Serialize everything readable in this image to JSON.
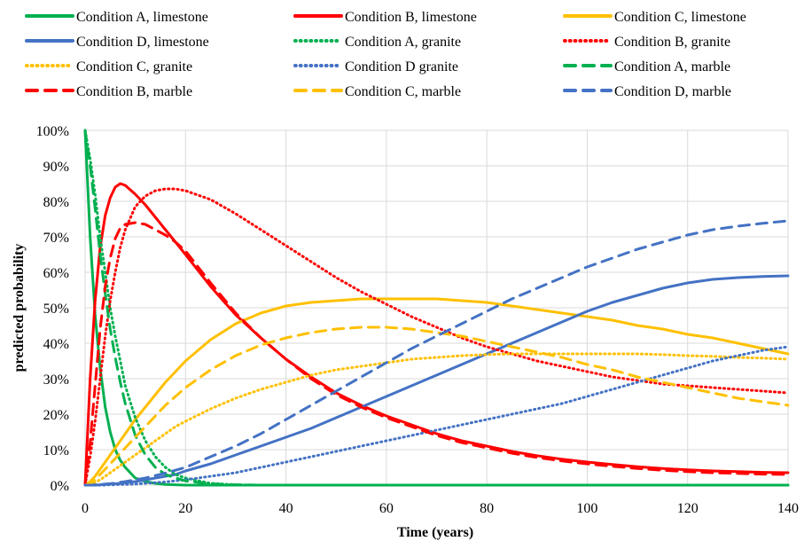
{
  "chart_data": {
    "type": "line",
    "title": "",
    "xlabel": "Time (years)",
    "ylabel": "predicted probability",
    "xlim": [
      0,
      140
    ],
    "ylim": [
      0,
      100
    ],
    "xticks": [
      "0",
      "20",
      "40",
      "60",
      "80",
      "100",
      "120",
      "140"
    ],
    "xtick_values": [
      0,
      20,
      40,
      60,
      80,
      100,
      120,
      140
    ],
    "yticks": [
      "0%",
      "10%",
      "20%",
      "30%",
      "40%",
      "50%",
      "60%",
      "70%",
      "80%",
      "90%",
      "100%"
    ],
    "ytick_values": [
      0,
      10,
      20,
      30,
      40,
      50,
      60,
      70,
      80,
      90,
      100
    ],
    "grid": true,
    "legend_position": "top",
    "x": [
      0,
      1,
      2,
      3,
      4,
      5,
      6,
      7,
      8,
      10,
      12,
      14,
      16,
      18,
      20,
      25,
      30,
      35,
      40,
      45,
      50,
      55,
      60,
      65,
      70,
      75,
      80,
      85,
      90,
      95,
      100,
      105,
      110,
      115,
      120,
      125,
      130,
      135,
      140
    ],
    "series": [
      {
        "name": "Condition A, limestone",
        "color": "#00B050",
        "style": "solid",
        "values": [
          100,
          70,
          48,
          33,
          22,
          15,
          10,
          7,
          5,
          2,
          1,
          0.5,
          0.2,
          0.1,
          0,
          0,
          0,
          0,
          0,
          0,
          0,
          0,
          0,
          0,
          0,
          0,
          0,
          0,
          0,
          0,
          0,
          0,
          0,
          0,
          0,
          0,
          0,
          0,
          0
        ]
      },
      {
        "name": "Condition B, limestone",
        "color": "#FF0000",
        "style": "solid",
        "values": [
          0,
          30,
          52,
          67,
          76,
          81,
          84,
          85,
          84.5,
          82,
          79,
          75.5,
          72,
          68.5,
          65,
          56,
          48,
          41.5,
          35.5,
          30.5,
          26,
          22.5,
          19.5,
          17,
          14.5,
          12.5,
          11,
          9.5,
          8.3,
          7.3,
          6.5,
          5.8,
          5.2,
          4.7,
          4.3,
          4,
          3.8,
          3.6,
          3.5
        ]
      },
      {
        "name": "Condition C, limestone",
        "color": "#FFC000",
        "style": "solid",
        "values": [
          0,
          1,
          2.5,
          4.5,
          6.5,
          8.5,
          10.5,
          12.5,
          14.5,
          18.5,
          22,
          25.5,
          29,
          32,
          35,
          41,
          45.5,
          48.5,
          50.5,
          51.5,
          52,
          52.5,
          52.5,
          52.5,
          52.5,
          52,
          51.5,
          50.5,
          49.5,
          48.5,
          47.5,
          46.5,
          45,
          44,
          42.5,
          41.5,
          40,
          38.5,
          37
        ]
      },
      {
        "name": "Condition D, limestone",
        "color": "#4472C4",
        "style": "solid",
        "values": [
          0,
          0,
          0,
          0.1,
          0.2,
          0.3,
          0.4,
          0.5,
          0.7,
          1,
          1.5,
          2,
          2.5,
          3,
          4,
          6,
          8.5,
          11,
          13.5,
          16,
          19,
          22,
          25,
          28,
          31,
          34,
          37,
          40,
          43,
          46,
          49,
          51.5,
          53.5,
          55.5,
          57,
          58,
          58.5,
          58.8,
          59
        ]
      },
      {
        "name": "Condition A, granite",
        "color": "#00B050",
        "style": "dotted",
        "values": [
          100,
          92,
          82,
          70,
          60,
          50,
          42,
          35,
          28,
          19,
          12.5,
          8,
          5,
          3,
          2,
          0.5,
          0.1,
          0,
          0,
          0,
          0,
          0,
          0,
          0,
          0,
          0,
          0,
          0,
          0,
          0,
          0,
          0,
          0,
          0,
          0,
          0,
          0,
          0,
          0
        ]
      },
      {
        "name": "Condition B, granite",
        "color": "#FF0000",
        "style": "dotted",
        "values": [
          0,
          8,
          18,
          30,
          42,
          52,
          60,
          67,
          72,
          78.5,
          81.5,
          83,
          83.5,
          83.5,
          83,
          80.5,
          76.5,
          72,
          67.5,
          63,
          58.5,
          54.5,
          51,
          47.5,
          44.5,
          41.5,
          39,
          37,
          35,
          33.5,
          32,
          30.5,
          29.5,
          28.5,
          28,
          27.5,
          27,
          26.5,
          26
        ]
      },
      {
        "name": "Condition C, granite",
        "color": "#FFC000",
        "style": "dotted",
        "values": [
          0,
          0.3,
          0.8,
          1.5,
          2.5,
          3.5,
          4.5,
          5.5,
          6.5,
          8.5,
          10.5,
          12.5,
          14.5,
          16.5,
          18,
          21.5,
          24.5,
          27,
          29,
          31,
          32.5,
          33.5,
          34.5,
          35.5,
          36,
          36.5,
          36.8,
          37,
          37,
          37,
          37,
          37,
          37,
          36.8,
          36.5,
          36.3,
          36,
          35.8,
          35.5
        ]
      },
      {
        "name": "Condition D granite",
        "color": "#4472C4",
        "style": "dotted",
        "values": [
          0,
          0,
          0,
          0,
          0,
          0.1,
          0.1,
          0.2,
          0.2,
          0.3,
          0.5,
          0.7,
          0.9,
          1.2,
          1.5,
          2.5,
          3.5,
          5,
          6.5,
          8,
          9.5,
          11,
          12.5,
          14,
          15.5,
          17,
          18.5,
          20,
          21.5,
          23,
          25,
          27,
          29,
          31,
          33,
          35,
          36.5,
          38,
          39
        ]
      },
      {
        "name": "Condition A, marble",
        "color": "#00B050",
        "style": "dashed",
        "values": [
          100,
          90,
          78,
          65,
          54,
          44,
          36,
          29,
          23,
          14,
          8.5,
          5,
          3,
          2,
          1.2,
          0.4,
          0.1,
          0,
          0,
          0,
          0,
          0,
          0,
          0,
          0,
          0,
          0,
          0,
          0,
          0,
          0,
          0,
          0,
          0,
          0,
          0,
          0,
          0,
          0
        ]
      },
      {
        "name": "Condition B, marble",
        "color": "#FF0000",
        "style": "dashed",
        "values": [
          0,
          12,
          28,
          44,
          56,
          64,
          69.5,
          72.5,
          73.5,
          74,
          73.5,
          72,
          70.5,
          68.5,
          66,
          57,
          48.5,
          41.5,
          35.5,
          30,
          25.5,
          22,
          19,
          16.5,
          14,
          12,
          10.5,
          9,
          7.8,
          6.8,
          6,
          5.3,
          4.7,
          4.2,
          3.8,
          3.5,
          3.3,
          3.1,
          3
        ]
      },
      {
        "name": "Condition C, marble",
        "color": "#FFC000",
        "style": "dashed",
        "values": [
          0,
          0.5,
          1.5,
          3,
          4.5,
          6,
          7.5,
          9,
          10.5,
          13.5,
          16.5,
          19.5,
          22.5,
          25,
          27.5,
          32.5,
          36.5,
          39.5,
          41.5,
          43,
          44,
          44.5,
          44.5,
          44,
          43,
          42,
          40.5,
          39,
          37.5,
          36,
          34,
          32.5,
          30.5,
          29,
          27.5,
          26,
          24.5,
          23.5,
          22.5
        ]
      },
      {
        "name": "Condition D, marble",
        "color": "#4472C4",
        "style": "dashed",
        "values": [
          0,
          0,
          0.1,
          0.2,
          0.3,
          0.4,
          0.6,
          0.8,
          1,
          1.5,
          2,
          2.7,
          3.4,
          4.2,
          5,
          8,
          11,
          14.5,
          18.5,
          22.5,
          26.5,
          30.5,
          34.5,
          38.5,
          42,
          45.5,
          49,
          52.5,
          55.5,
          58.5,
          61.5,
          64,
          66.5,
          68.5,
          70.5,
          72,
          73,
          73.8,
          74.5
        ]
      }
    ]
  }
}
